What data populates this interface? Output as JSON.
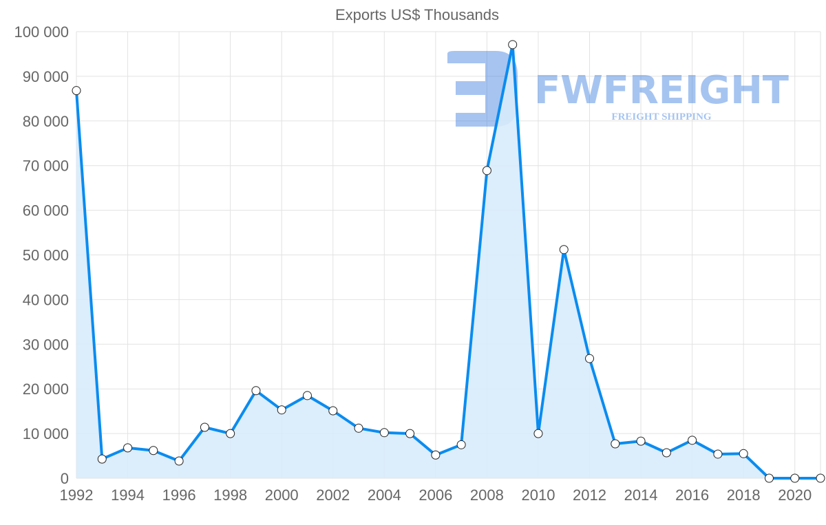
{
  "chart_data": {
    "type": "line",
    "title": "Exports US$ Thousands",
    "xlabel": "",
    "ylabel": "",
    "x": [
      1992,
      1993,
      1994,
      1995,
      1996,
      1997,
      1998,
      1999,
      2000,
      2001,
      2002,
      2003,
      2004,
      2005,
      2006,
      2007,
      2008,
      2009,
      2010,
      2011,
      2012,
      2013,
      2014,
      2015,
      2016,
      2017,
      2018,
      2019,
      2020,
      2021
    ],
    "series": [
      {
        "name": "Exports US$ Thousands",
        "values": [
          86800,
          4300,
          6800,
          6200,
          3850,
          11400,
          10000,
          19600,
          15300,
          18500,
          15100,
          11200,
          10200,
          10000,
          5200,
          7500,
          68900,
          97100,
          10000,
          51200,
          26800,
          7700,
          8300,
          5700,
          8500,
          5400,
          5500,
          0,
          0,
          0
        ],
        "color": "#0a8cf0",
        "fill": "#d8ebfb"
      }
    ],
    "ylim": [
      0,
      100000
    ],
    "xlim": [
      1992,
      2021
    ],
    "yticks": [
      "0",
      "10 000",
      "20 000",
      "30 000",
      "40 000",
      "50 000",
      "60 000",
      "70 000",
      "80 000",
      "90 000",
      "100 000"
    ],
    "xticks": [
      "1992",
      "1994",
      "1996",
      "1998",
      "2000",
      "2002",
      "2004",
      "2006",
      "2008",
      "2010",
      "2012",
      "2014",
      "2016",
      "2018",
      "2020"
    ],
    "grid": true,
    "legend": "none"
  },
  "watermark": {
    "brand": "FWFREIGHT",
    "tagline": "FREIGHT SHIPPING"
  }
}
